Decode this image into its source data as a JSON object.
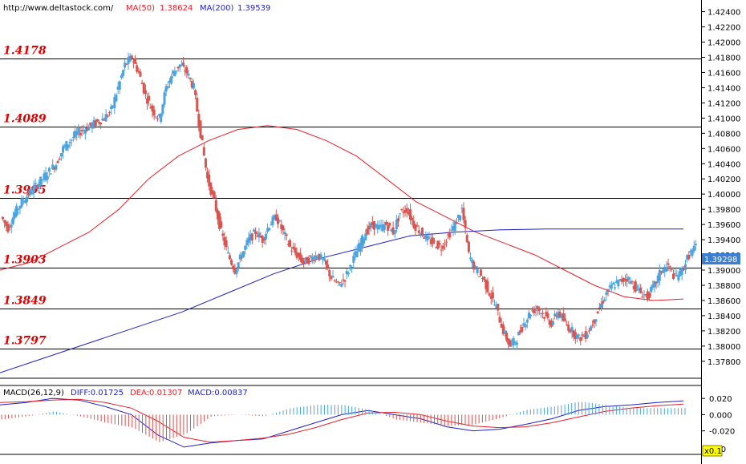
{
  "header": {
    "url": "http://www.deltastock.com/",
    "ma50_label": "MA(50)",
    "ma50_value": "1.38624",
    "ma200_label": "MA(200)",
    "ma200_value": "1.39539"
  },
  "macd_header": {
    "label": "MACD(26,12,9)",
    "diff": "DIFF:0.01725",
    "dea": "DEA:0.01307",
    "macd": "MACD:0.00837"
  },
  "badges": {
    "last_price": "1.39298",
    "scale": "x0.1"
  },
  "colors": {
    "up": "#4aa3df",
    "down": "#d9534f",
    "ma50": "#e8202a",
    "ma200": "#1e1ec8",
    "level_text": "#e00000"
  },
  "chart_data": [
    {
      "type": "candlestick",
      "ylim": [
        1.3764,
        1.4248
      ],
      "y_ticks": [
        "1.37800",
        "1.38000",
        "1.38200",
        "1.38400",
        "1.38600",
        "1.38800",
        "1.39000",
        "1.39200",
        "1.39400",
        "1.39600",
        "1.39800",
        "1.40000",
        "1.40200",
        "1.40400",
        "1.40600",
        "1.40800",
        "1.41000",
        "1.41200",
        "1.41400",
        "1.41600",
        "1.41800",
        "1.42000",
        "1.42200",
        "1.42400"
      ],
      "levels": [
        {
          "value": 1.4178,
          "label": "1.4178"
        },
        {
          "value": 1.4089,
          "label": "1.4089"
        },
        {
          "value": 1.3995,
          "label": "1.3995"
        },
        {
          "value": 1.3903,
          "label": "1.3903"
        },
        {
          "value": 1.3849,
          "label": "1.3849"
        },
        {
          "value": 1.3797,
          "label": "1.3797"
        }
      ],
      "last_price": 1.39298,
      "series": [
        {
          "name": "MA(50)",
          "value": 1.38624
        },
        {
          "name": "MA(200)",
          "value": 1.39539
        }
      ],
      "price_path": [
        1.397,
        1.3955,
        1.3975,
        1.399,
        1.4,
        1.401,
        1.402,
        1.403,
        1.404,
        1.406,
        1.407,
        1.408,
        1.4085,
        1.409,
        1.4095,
        1.41,
        1.411,
        1.414,
        1.417,
        1.418,
        1.416,
        1.413,
        1.411,
        1.41,
        1.414,
        1.416,
        1.417,
        1.416,
        1.414,
        1.408,
        1.402,
        1.399,
        1.395,
        1.392,
        1.39,
        1.392,
        1.394,
        1.395,
        1.394,
        1.396,
        1.397,
        1.395,
        1.393,
        1.392,
        1.391,
        1.3915,
        1.392,
        1.391,
        1.389,
        1.388,
        1.389,
        1.391,
        1.393,
        1.395,
        1.396,
        1.3955,
        1.396,
        1.395,
        1.3975,
        1.398,
        1.396,
        1.395,
        1.394,
        1.3935,
        1.393,
        1.3945,
        1.396,
        1.398,
        1.392,
        1.39,
        1.389,
        1.387,
        1.385,
        1.382,
        1.38,
        1.381,
        1.383,
        1.3845,
        1.385,
        1.384,
        1.383,
        1.3845,
        1.383,
        1.382,
        1.381,
        1.3815,
        1.383,
        1.385,
        1.387,
        1.388,
        1.3885,
        1.389,
        1.388,
        1.387,
        1.3865,
        1.388,
        1.39,
        1.3905,
        1.389,
        1.39,
        1.392,
        1.393
      ],
      "ma50_path": [
        1.39,
        1.391,
        1.393,
        1.395,
        1.398,
        1.402,
        1.405,
        1.407,
        1.4085,
        1.409,
        1.4085,
        1.407,
        1.405,
        1.402,
        1.399,
        1.397,
        1.395,
        1.3935,
        1.392,
        1.39,
        1.388,
        1.3865,
        1.386,
        1.3862
      ],
      "ma200_path": [
        1.3765,
        1.3785,
        1.3805,
        1.3825,
        1.3845,
        1.387,
        1.3895,
        1.3915,
        1.393,
        1.3945,
        1.395,
        1.3953,
        1.3954,
        1.3954,
        1.3954,
        1.3954
      ]
    },
    {
      "type": "macd",
      "ylim": [
        -0.048,
        0.032
      ],
      "y_ticks": [
        "0.020",
        "0.000",
        "-0.020"
      ],
      "macd_tick_partial": "040",
      "diff": 0.01725,
      "dea": 0.01307,
      "macd": 0.00837,
      "diff_path": [
        0.012,
        0.015,
        0.02,
        0.018,
        0.01,
        0.0,
        -0.025,
        -0.04,
        -0.035,
        -0.032,
        -0.03,
        -0.02,
        -0.01,
        0.0,
        0.005,
        0.0,
        -0.005,
        -0.015,
        -0.02,
        -0.018,
        -0.012,
        -0.005,
        0.005,
        0.01,
        0.012,
        0.015,
        0.017
      ],
      "dea_path": [
        0.015,
        0.016,
        0.018,
        0.019,
        0.015,
        0.008,
        -0.008,
        -0.028,
        -0.034,
        -0.032,
        -0.029,
        -0.024,
        -0.016,
        -0.006,
        0.002,
        0.003,
        0.0,
        -0.008,
        -0.014,
        -0.016,
        -0.015,
        -0.01,
        -0.003,
        0.004,
        0.008,
        0.011,
        0.013
      ]
    }
  ]
}
